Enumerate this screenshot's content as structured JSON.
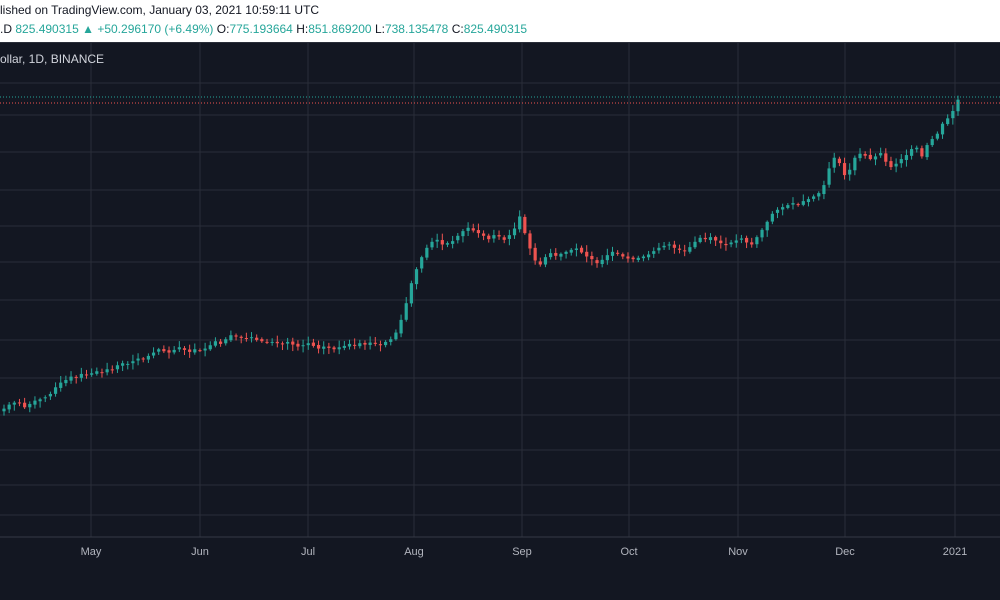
{
  "header": {
    "published": "lished on TradingView.com, January 03, 2021 10:59:11 UTC",
    "symbol_tail": ".D",
    "last": "825.490315",
    "change_arrow": "▲",
    "change": "+50.296170 (+6.49%)",
    "o_label": "O:",
    "o_val": "775.193664",
    "h_label": "H:",
    "h_val": "851.869200",
    "l_label": "L:",
    "l_val": "738.135478",
    "c_label": "C:",
    "c_val": "825.490315"
  },
  "legend_text": "ollar, 1D, BINANCE",
  "colors": {
    "up": "#26a69a",
    "down": "#ef5350",
    "grid": "#2a2e39",
    "bg": "#131722"
  },
  "chart_data": {
    "type": "candlestick",
    "x_ticks": [
      "May",
      "Jun",
      "Jul",
      "Aug",
      "Sep",
      "Oct",
      "Nov",
      "Dec",
      "2021"
    ],
    "close_series": [
      362,
      368,
      371,
      370,
      364,
      369,
      374,
      376,
      379,
      384,
      394,
      401,
      405,
      410,
      409,
      414,
      412,
      415,
      418,
      416,
      421,
      420,
      427,
      430,
      429,
      433,
      437,
      436,
      441,
      446,
      451,
      448,
      446,
      450,
      454,
      450,
      447,
      451,
      449,
      452,
      457,
      463,
      459,
      466,
      472,
      470,
      468,
      467,
      469,
      465,
      463,
      461,
      462,
      460,
      459,
      462,
      458,
      455,
      457,
      460,
      456,
      452,
      455,
      453,
      451,
      454,
      456,
      459,
      457,
      460,
      458,
      461,
      459,
      457,
      462,
      466,
      476,
      495,
      520,
      550,
      571,
      589,
      603,
      612,
      615,
      608,
      610,
      613,
      621,
      628,
      633,
      629,
      625,
      621,
      616,
      622,
      620,
      615,
      622,
      632,
      650,
      625,
      602,
      584,
      578,
      589,
      595,
      591,
      594,
      597,
      600,
      602,
      596,
      590,
      586,
      580,
      585,
      592,
      597,
      594,
      590,
      587,
      586,
      588,
      590,
      593,
      598,
      603,
      606,
      608,
      603,
      600,
      598,
      604,
      612,
      618,
      616,
      619,
      614,
      610,
      607,
      611,
      614,
      617,
      611,
      608,
      619,
      630,
      642,
      654,
      660,
      664,
      667,
      670,
      668,
      673,
      676,
      680,
      685,
      697,
      722,
      738,
      730,
      712,
      720,
      738,
      744,
      741,
      736,
      740,
      745,
      732,
      724,
      729,
      736,
      742,
      751,
      753,
      740,
      757,
      766,
      774,
      789,
      797,
      808,
      825
    ]
  }
}
